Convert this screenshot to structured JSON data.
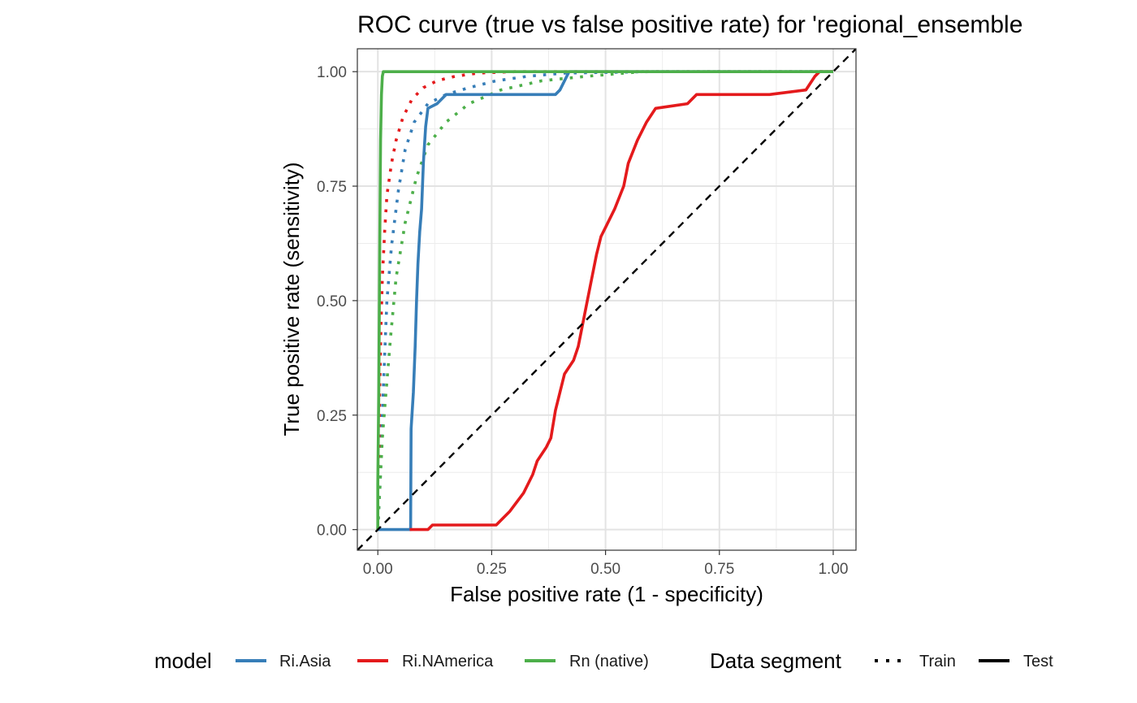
{
  "chart_data": {
    "type": "line",
    "title": "ROC curve (true vs false positive rate) for 'regional_ensemble",
    "xlabel": "False positive rate (1 - specificity)",
    "ylabel": "True positive rate (sensitivity)",
    "xlim": [
      -0.045,
      1.05
    ],
    "ylim": [
      -0.045,
      1.05
    ],
    "x_ticks": [
      0.0,
      0.25,
      0.5,
      0.75,
      1.0
    ],
    "x_tick_labels": [
      "0.00",
      "0.25",
      "0.50",
      "0.75",
      "1.00"
    ],
    "y_ticks": [
      0.0,
      0.25,
      0.5,
      0.75,
      1.0
    ],
    "y_tick_labels": [
      "0.00",
      "0.25",
      "0.50",
      "0.75",
      "1.00"
    ],
    "grid": true,
    "reference_line": "diagonal dashed y = x",
    "legend_position": "bottom",
    "legend": {
      "model_title": "model",
      "models": [
        {
          "name": "Ri.Asia",
          "color": "#377EB8"
        },
        {
          "name": "Ri.NAmerica",
          "color": "#E41A1C"
        },
        {
          "name": "Rn (native)",
          "color": "#4DAF4A"
        }
      ],
      "segment_title": "Data segment",
      "segments": [
        {
          "name": "Train",
          "linetype": "dotted"
        },
        {
          "name": "Test",
          "linetype": "solid"
        }
      ]
    },
    "series": [
      {
        "name": "Ri.Asia",
        "segment": "Train",
        "color": "#377EB8",
        "points": [
          [
            0.0,
            0.0
          ],
          [
            0.005,
            0.1
          ],
          [
            0.01,
            0.25
          ],
          [
            0.015,
            0.38
          ],
          [
            0.02,
            0.5
          ],
          [
            0.03,
            0.62
          ],
          [
            0.045,
            0.74
          ],
          [
            0.06,
            0.83
          ],
          [
            0.08,
            0.89
          ],
          [
            0.11,
            0.93
          ],
          [
            0.15,
            0.95
          ],
          [
            0.2,
            0.965
          ],
          [
            0.26,
            0.98
          ],
          [
            0.33,
            0.99
          ],
          [
            0.41,
            0.997
          ],
          [
            0.6,
            1.0
          ],
          [
            1.0,
            1.0
          ]
        ]
      },
      {
        "name": "Ri.Asia",
        "segment": "Test",
        "color": "#377EB8",
        "points": [
          [
            0.0,
            0.0
          ],
          [
            0.072,
            0.0
          ],
          [
            0.073,
            0.22
          ],
          [
            0.078,
            0.3
          ],
          [
            0.082,
            0.4
          ],
          [
            0.085,
            0.5
          ],
          [
            0.088,
            0.58
          ],
          [
            0.092,
            0.65
          ],
          [
            0.096,
            0.7
          ],
          [
            0.1,
            0.8
          ],
          [
            0.105,
            0.88
          ],
          [
            0.11,
            0.92
          ],
          [
            0.13,
            0.93
          ],
          [
            0.15,
            0.95
          ],
          [
            0.39,
            0.95
          ],
          [
            0.4,
            0.96
          ],
          [
            0.41,
            0.98
          ],
          [
            0.42,
            1.0
          ],
          [
            1.0,
            1.0
          ]
        ]
      },
      {
        "name": "Ri.NAmerica",
        "segment": "Train",
        "color": "#E41A1C",
        "points": [
          [
            0.0,
            0.0
          ],
          [
            0.002,
            0.15
          ],
          [
            0.004,
            0.3
          ],
          [
            0.007,
            0.45
          ],
          [
            0.01,
            0.55
          ],
          [
            0.015,
            0.65
          ],
          [
            0.02,
            0.73
          ],
          [
            0.03,
            0.8
          ],
          [
            0.04,
            0.85
          ],
          [
            0.055,
            0.9
          ],
          [
            0.075,
            0.94
          ],
          [
            0.1,
            0.965
          ],
          [
            0.13,
            0.98
          ],
          [
            0.17,
            0.99
          ],
          [
            0.22,
            0.997
          ],
          [
            0.3,
            1.0
          ],
          [
            1.0,
            1.0
          ]
        ]
      },
      {
        "name": "Ri.NAmerica",
        "segment": "Test",
        "color": "#E41A1C",
        "points": [
          [
            0.07,
            0.0
          ],
          [
            0.11,
            0.0
          ],
          [
            0.12,
            0.01
          ],
          [
            0.26,
            0.01
          ],
          [
            0.29,
            0.04
          ],
          [
            0.32,
            0.08
          ],
          [
            0.34,
            0.12
          ],
          [
            0.35,
            0.15
          ],
          [
            0.37,
            0.18
          ],
          [
            0.38,
            0.2
          ],
          [
            0.39,
            0.26
          ],
          [
            0.4,
            0.3
          ],
          [
            0.41,
            0.34
          ],
          [
            0.43,
            0.37
          ],
          [
            0.44,
            0.4
          ],
          [
            0.45,
            0.45
          ],
          [
            0.46,
            0.5
          ],
          [
            0.47,
            0.55
          ],
          [
            0.48,
            0.6
          ],
          [
            0.49,
            0.64
          ],
          [
            0.5,
            0.66
          ],
          [
            0.52,
            0.7
          ],
          [
            0.54,
            0.75
          ],
          [
            0.55,
            0.8
          ],
          [
            0.57,
            0.85
          ],
          [
            0.59,
            0.89
          ],
          [
            0.61,
            0.92
          ],
          [
            0.68,
            0.93
          ],
          [
            0.7,
            0.95
          ],
          [
            0.86,
            0.95
          ],
          [
            0.94,
            0.96
          ],
          [
            0.96,
            0.99
          ],
          [
            0.97,
            1.0
          ],
          [
            1.0,
            1.0
          ]
        ]
      },
      {
        "name": "Rn (native)",
        "segment": "Train",
        "color": "#4DAF4A",
        "points": [
          [
            0.0,
            0.0
          ],
          [
            0.005,
            0.1
          ],
          [
            0.01,
            0.2
          ],
          [
            0.018,
            0.3
          ],
          [
            0.028,
            0.42
          ],
          [
            0.04,
            0.55
          ],
          [
            0.06,
            0.67
          ],
          [
            0.085,
            0.77
          ],
          [
            0.11,
            0.84
          ],
          [
            0.15,
            0.89
          ],
          [
            0.2,
            0.93
          ],
          [
            0.27,
            0.96
          ],
          [
            0.36,
            0.98
          ],
          [
            0.46,
            0.99
          ],
          [
            0.58,
            1.0
          ],
          [
            1.0,
            1.0
          ]
        ]
      },
      {
        "name": "Rn (native)",
        "segment": "Test",
        "color": "#4DAF4A",
        "points": [
          [
            0.0,
            0.0
          ],
          [
            0.0,
            0.1
          ],
          [
            0.002,
            0.3
          ],
          [
            0.004,
            0.6
          ],
          [
            0.006,
            0.85
          ],
          [
            0.008,
            0.95
          ],
          [
            0.01,
            0.99
          ],
          [
            0.012,
            1.0
          ],
          [
            1.0,
            1.0
          ]
        ]
      }
    ]
  }
}
